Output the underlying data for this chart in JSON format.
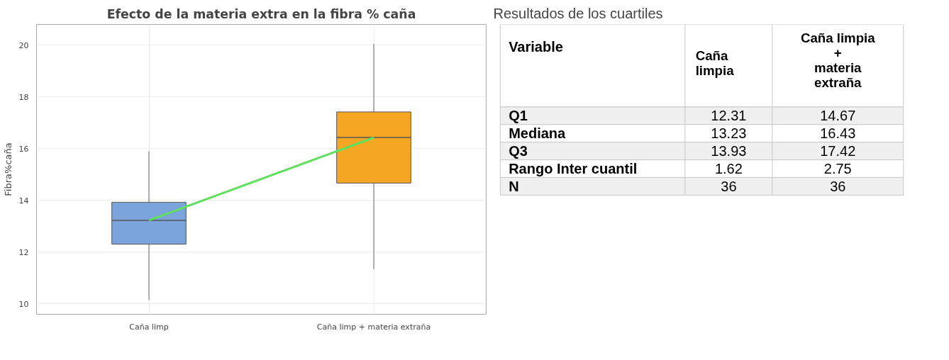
{
  "chart_data": [
    {
      "type": "box",
      "title": "Efecto de la materia extra en la fibra % caña",
      "ylabel": "Fibra%caña",
      "categories": [
        "Caña limp",
        "Caña limp + materia extraña"
      ],
      "boxes": [
        {
          "low": 10.15,
          "q1": 12.31,
          "median": 13.23,
          "q3": 13.93,
          "high": 15.9
        },
        {
          "low": 11.35,
          "q1": 14.67,
          "median": 16.43,
          "q3": 17.42,
          "high": 20.05
        }
      ],
      "colors": [
        "#7ba4db",
        "#f5a623"
      ],
      "series": [
        {
          "type": "line",
          "color": "#5fe05f",
          "values": [
            13.23,
            16.43
          ]
        }
      ],
      "ylim": [
        9.6,
        20.8
      ],
      "yticks": [
        10,
        12,
        14,
        16,
        18,
        20
      ],
      "grid": true
    },
    {
      "type": "other",
      "title": "Resultados de los cuartiles",
      "categories": [
        "Variable",
        "Caña\nlimpia",
        "Caña limpia\n+\nmateria\nextraña"
      ],
      "y_categories": [
        "Q1",
        "Mediana",
        "Q3",
        "Rango Inter cuantil",
        "N"
      ],
      "cell_labels": [
        [
          "12.31",
          "14.67"
        ],
        [
          "13.23",
          "16.43"
        ],
        [
          "13.93",
          "17.42"
        ],
        [
          "1.62",
          "2.75"
        ],
        [
          "36",
          "36"
        ]
      ]
    }
  ]
}
